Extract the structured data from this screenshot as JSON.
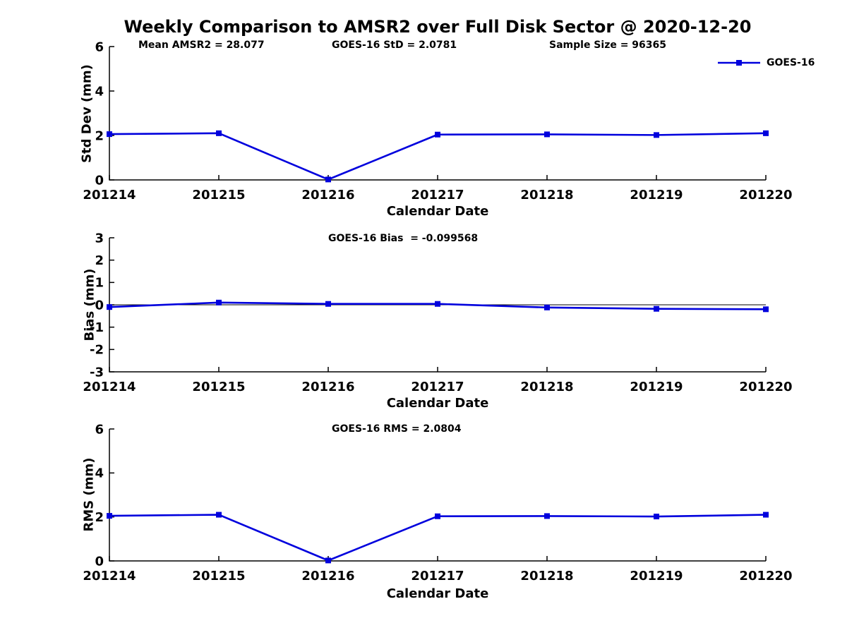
{
  "title": "Weekly Comparison to AMSR2 over Full Disk Sector @ 2020-12-20",
  "accent_color": "#0000dd",
  "chart_data": [
    {
      "type": "line",
      "panel": "std-dev",
      "annotations": [
        "Mean AMSR2 = 28.077",
        "GOES-16 StD = 2.0781",
        "Sample Size = 96365"
      ],
      "xlabel": "Calendar Date",
      "ylabel": "Std Dev (mm)",
      "x": [
        "201214",
        "201215",
        "201216",
        "201217",
        "201218",
        "201219",
        "201220"
      ],
      "ylim": [
        0,
        6
      ],
      "yticks": [
        0,
        2,
        4,
        6
      ],
      "grid": false,
      "legend_position": "upper-right-outside",
      "series": [
        {
          "name": "GOES-16",
          "color": "#0000dd",
          "marker": "square",
          "values": [
            2.06,
            2.1,
            0.02,
            2.04,
            2.05,
            2.02,
            2.1
          ]
        }
      ]
    },
    {
      "type": "line",
      "panel": "bias",
      "annotations": [
        "GOES-16 Bias  = -0.099568"
      ],
      "xlabel": "Calendar Date",
      "ylabel": "Bias (mm)",
      "x": [
        "201214",
        "201215",
        "201216",
        "201217",
        "201218",
        "201219",
        "201220"
      ],
      "ylim": [
        -3,
        3
      ],
      "yticks": [
        -3,
        -2,
        -1,
        0,
        1,
        2,
        3
      ],
      "zero_line": true,
      "grid": false,
      "series": [
        {
          "name": "GOES-16",
          "color": "#0000dd",
          "marker": "square",
          "values": [
            -0.1,
            0.1,
            0.04,
            0.04,
            -0.12,
            -0.18,
            -0.2
          ]
        }
      ]
    },
    {
      "type": "line",
      "panel": "rms",
      "annotations": [
        "GOES-16 RMS = 2.0804"
      ],
      "xlabel": "Calendar Date",
      "ylabel": "RMS (mm)",
      "x": [
        "201214",
        "201215",
        "201216",
        "201217",
        "201218",
        "201219",
        "201220"
      ],
      "ylim": [
        0,
        6
      ],
      "yticks": [
        0,
        2,
        4,
        6
      ],
      "grid": false,
      "series": [
        {
          "name": "GOES-16",
          "color": "#0000dd",
          "marker": "square",
          "values": [
            2.05,
            2.1,
            0.02,
            2.03,
            2.04,
            2.02,
            2.1
          ]
        }
      ]
    }
  ]
}
